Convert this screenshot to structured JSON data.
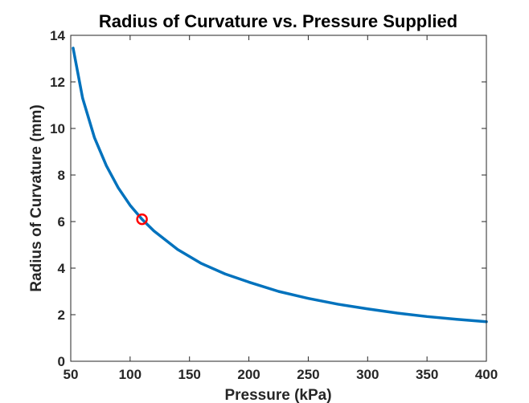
{
  "chart_data": {
    "type": "line",
    "title": "Radius of Curvature vs. Pressure Supplied",
    "xlabel": "Pressure (kPa)",
    "ylabel": "Radius of Curvature (mm)",
    "xlim": [
      50,
      400
    ],
    "ylim": [
      0,
      14
    ],
    "xticks": [
      50,
      100,
      150,
      200,
      250,
      300,
      350,
      400
    ],
    "yticks": [
      0,
      2,
      4,
      6,
      8,
      10,
      12,
      14
    ],
    "grid": false,
    "box": true,
    "series": [
      {
        "color": "#0072BD",
        "x": [
          52,
          60,
          70,
          80,
          90,
          100,
          110,
          120,
          140,
          160,
          180,
          200,
          225,
          250,
          275,
          300,
          325,
          350,
          375,
          400
        ],
        "y": [
          13.45,
          11.3,
          9.6,
          8.4,
          7.45,
          6.7,
          6.1,
          5.6,
          4.8,
          4.2,
          3.75,
          3.4,
          3.0,
          2.7,
          2.45,
          2.25,
          2.07,
          1.92,
          1.8,
          1.7
        ]
      }
    ],
    "markers": [
      {
        "x": 110,
        "y": 6.1,
        "shape": "circle",
        "color": "#FF0000"
      }
    ]
  }
}
